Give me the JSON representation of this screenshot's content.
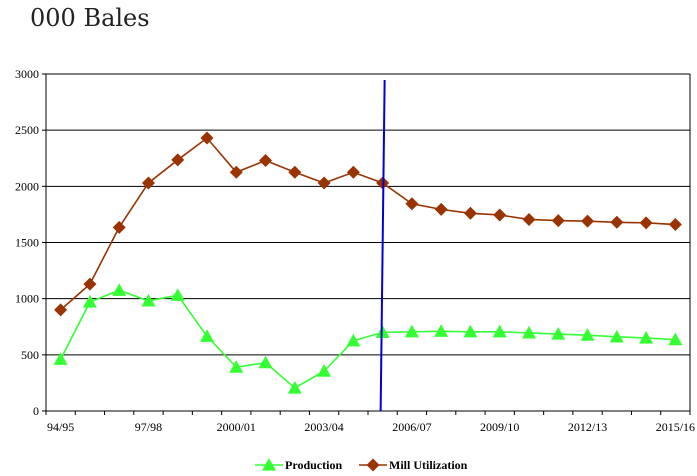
{
  "chart_data": {
    "type": "line",
    "title": "000 Bales",
    "xlabel": "",
    "ylabel": "",
    "ylim": [
      0,
      3000
    ],
    "yticks": [
      0,
      500,
      1000,
      1500,
      2000,
      2500,
      3000
    ],
    "grid": true,
    "legend_position": "bottom",
    "categories": [
      "94/95",
      "95/96",
      "96/97",
      "97/98",
      "98/99",
      "99/00",
      "2000/01",
      "2001/02",
      "2002/03",
      "2003/04",
      "2004/05",
      "2005/06",
      "2006/07",
      "2007/08",
      "2008/09",
      "2009/10",
      "2010/11",
      "2011/12",
      "2012/13",
      "2013/14",
      "2014/15",
      "2015/16"
    ],
    "x_tick_labels": [
      "94/95",
      "97/98",
      "2000/01",
      "2003/04",
      "2006/07",
      "2009/10",
      "2012/13",
      "2015/16"
    ],
    "vertical_marker_category": "2005/06",
    "series": [
      {
        "name": "Production",
        "color": "#33ff33",
        "marker": "triangle",
        "values": [
          460,
          970,
          1075,
          980,
          1030,
          665,
          390,
          430,
          205,
          355,
          625,
          700,
          705,
          710,
          705,
          705,
          695,
          685,
          675,
          660,
          650,
          635
        ]
      },
      {
        "name": "Mill Utilization",
        "color": "#993300",
        "marker": "diamond",
        "values": [
          900,
          1130,
          1635,
          2030,
          2235,
          2430,
          2125,
          2230,
          2125,
          2030,
          2125,
          2030,
          1845,
          1795,
          1760,
          1745,
          1705,
          1695,
          1690,
          1680,
          1675,
          1660
        ]
      }
    ],
    "vertical_marker_color": "#0000dd"
  }
}
